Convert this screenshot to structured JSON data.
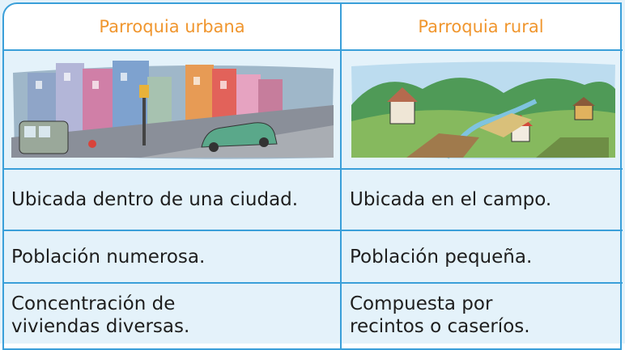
{
  "table": {
    "header": [
      "Parroquia urbana",
      "Parroquia rural"
    ],
    "rows": [
      [
        "Ubicada dentro de una ciudad.",
        "Ubicada en el campo."
      ],
      [
        "Población numerosa.",
        "Población pequeña."
      ],
      [
        "Concentración de\nviviendas diversas.",
        "Compuesta por\nrecintos o caseríos."
      ]
    ]
  }
}
